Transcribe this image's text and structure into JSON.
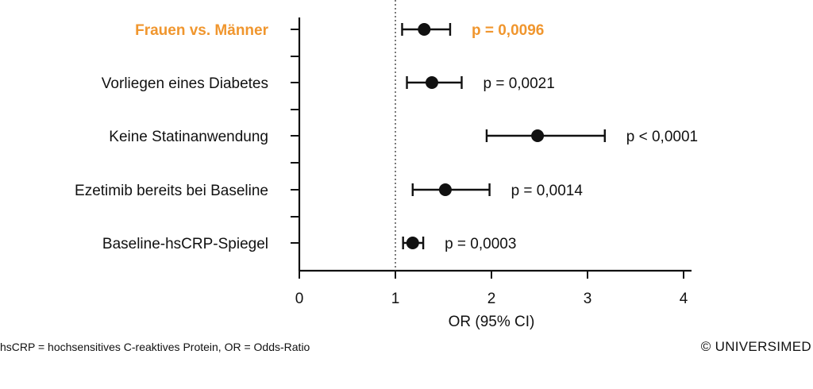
{
  "chart_data": {
    "type": "forest",
    "xlabel": "OR (95% CI)",
    "xlim": [
      0,
      4
    ],
    "x_ticks": [
      "0",
      "1",
      "2",
      "3",
      "4"
    ],
    "x_tick_values": [
      0,
      1,
      2,
      3,
      4
    ],
    "reference_line": 1,
    "highlight_color": "#F0962E",
    "rows": [
      {
        "label": "Frauen vs. Männer",
        "or": 1.3,
        "ci_low": 1.07,
        "ci_high": 1.57,
        "p_label": "p = 0,0096",
        "highlight": true
      },
      {
        "label": "Vorliegen eines Diabetes",
        "or": 1.38,
        "ci_low": 1.12,
        "ci_high": 1.69,
        "p_label": "p = 0,0021",
        "highlight": false
      },
      {
        "label": "Keine Statinanwendung",
        "or": 2.48,
        "ci_low": 1.95,
        "ci_high": 3.18,
        "p_label": "p < 0,0001",
        "highlight": false
      },
      {
        "label": "Ezetimib bereits bei Baseline",
        "or": 1.52,
        "ci_low": 1.18,
        "ci_high": 1.98,
        "p_label": "p = 0,0014",
        "highlight": false
      },
      {
        "label": "Baseline-hsCRP-Spiegel",
        "or": 1.18,
        "ci_low": 1.08,
        "ci_high": 1.29,
        "p_label": "p = 0,0003",
        "highlight": false
      }
    ]
  },
  "footnote": "hsCRP = hochsensitives C-reaktives Protein, OR = Odds-Ratio",
  "copyright": "© UNIVERSIMED"
}
